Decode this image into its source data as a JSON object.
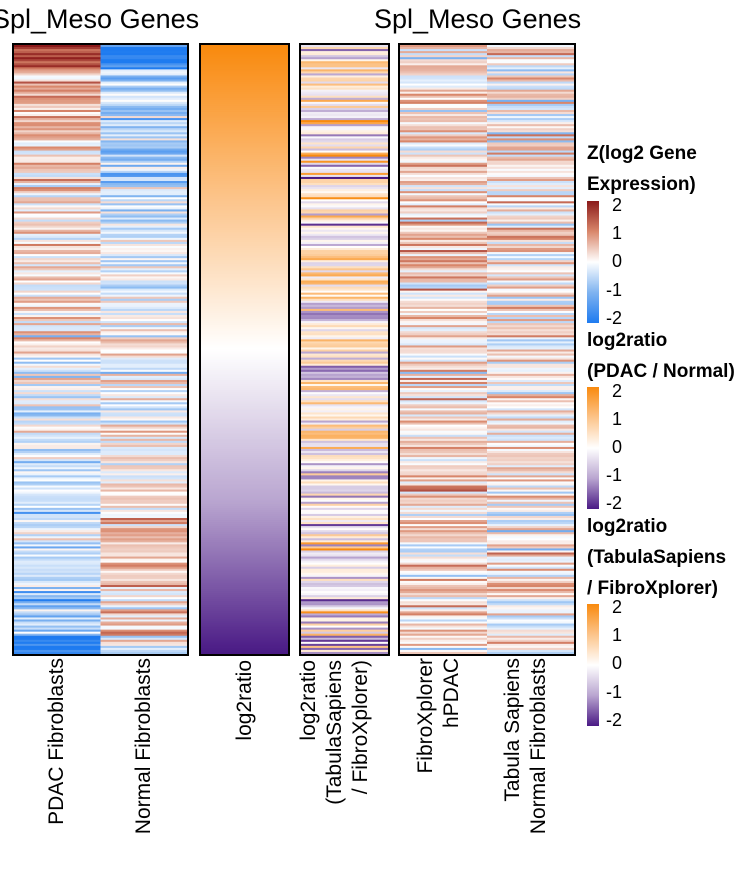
{
  "titles": {
    "left": "Spl_Meso Genes",
    "right": "Spl_Meso Genes"
  },
  "columns": {
    "panel1": [
      "PDAC Fibroblasts",
      "Normal Fibroblasts"
    ],
    "panel2": [
      "log2ratio"
    ],
    "panel3": [
      "log2ratio\n(TabulaSapiens\n/ FibroXplorer)"
    ],
    "panel4": [
      "FibroXplorer\nhPDAC",
      "Tabula Sapiens\nNormal Fibroblasts"
    ]
  },
  "legends": [
    {
      "title": "Z(log2 Gene\nExpression)",
      "ticks": [
        "2",
        "1",
        "0",
        "-1",
        "-2"
      ],
      "colors": [
        "#8b1a1a",
        "#d9876b",
        "#ffffff",
        "#7fb3f0",
        "#1e7bf0"
      ]
    },
    {
      "title": "log2ratio\n(PDAC / Normal)",
      "ticks": [
        "2",
        "1",
        "0",
        "-1",
        "-2"
      ],
      "colors": [
        "#f98a0e",
        "#fcc48a",
        "#ffffff",
        "#b9a5d0",
        "#4a1a85"
      ]
    },
    {
      "title": "log2ratio\n(TabulaSapiens\n/ FibroXplorer)",
      "ticks": [
        "2",
        "1",
        "0",
        "-1",
        "-2"
      ],
      "colors": [
        "#f98a0e",
        "#fcc48a",
        "#ffffff",
        "#b9a5d0",
        "#4a1a85"
      ]
    }
  ],
  "chart_data": {
    "type": "heatmap",
    "rows_genes": 300,
    "color_range": [
      -2,
      2
    ],
    "log2ratio_order": "sorted descending (top = 2, bottom = -2)",
    "series": [
      {
        "name": "PDAC Fibroblasts",
        "scale": "Z(log2 Gene Expression)"
      },
      {
        "name": "Normal Fibroblasts",
        "scale": "Z(log2 Gene Expression)"
      },
      {
        "name": "log2ratio",
        "scale": "log2ratio (PDAC / Normal)"
      },
      {
        "name": "log2ratio (TabulaSapiens / FibroXplorer)",
        "scale": "log2ratio (TabulaSapiens / FibroXplorer)"
      },
      {
        "name": "FibroXplorer hPDAC",
        "scale": "Z(log2 Gene Expression)"
      },
      {
        "name": "Tabula Sapiens Normal Fibroblasts",
        "scale": "Z(log2 Gene Expression)"
      }
    ]
  }
}
